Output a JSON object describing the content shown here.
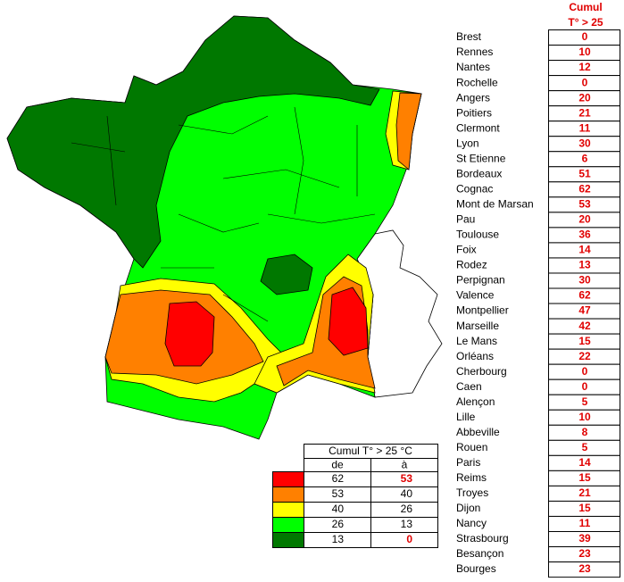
{
  "header": {
    "line1": "Cumul",
    "line2": "T° > 25"
  },
  "cities": [
    {
      "name": "Brest",
      "value": 0
    },
    {
      "name": "Rennes",
      "value": 10
    },
    {
      "name": "Nantes",
      "value": 12
    },
    {
      "name": "Rochelle",
      "value": 0
    },
    {
      "name": "Angers",
      "value": 20
    },
    {
      "name": "Poitiers",
      "value": 21
    },
    {
      "name": "Clermont",
      "value": 11
    },
    {
      "name": "Lyon",
      "value": 30
    },
    {
      "name": "St Etienne",
      "value": 6
    },
    {
      "name": "Bordeaux",
      "value": 51
    },
    {
      "name": "Cognac",
      "value": 62
    },
    {
      "name": "Mont de Marsan",
      "value": 53
    },
    {
      "name": "Pau",
      "value": 20
    },
    {
      "name": "Toulouse",
      "value": 36
    },
    {
      "name": "Foix",
      "value": 14
    },
    {
      "name": "Rodez",
      "value": 13
    },
    {
      "name": "Perpignan",
      "value": 30
    },
    {
      "name": "Valence",
      "value": 62
    },
    {
      "name": "Montpellier",
      "value": 47
    },
    {
      "name": "Marseille",
      "value": 42
    },
    {
      "name": "Le Mans",
      "value": 15
    },
    {
      "name": "Orléans",
      "value": 22
    },
    {
      "name": "Cherbourg",
      "value": 0
    },
    {
      "name": "Caen",
      "value": 0
    },
    {
      "name": "Alençon",
      "value": 5
    },
    {
      "name": "Lille",
      "value": 10
    },
    {
      "name": "Abbeville",
      "value": 8
    },
    {
      "name": "Rouen",
      "value": 5
    },
    {
      "name": "Paris",
      "value": 14
    },
    {
      "name": "Reims",
      "value": 15
    },
    {
      "name": "Troyes",
      "value": 21
    },
    {
      "name": "Dijon",
      "value": 15
    },
    {
      "name": "Nancy",
      "value": 11
    },
    {
      "name": "Strasbourg",
      "value": 39
    },
    {
      "name": "Besançon",
      "value": 23
    },
    {
      "name": "Bourges",
      "value": 23
    }
  ],
  "legend": {
    "title": "Cumul T° > 25 °C",
    "headers": [
      "de",
      "à"
    ],
    "rows": [
      {
        "from": 62,
        "to": 53,
        "color": "#ff0000"
      },
      {
        "from": 53,
        "to": 40,
        "color": "#ff8000"
      },
      {
        "from": 40,
        "to": 26,
        "color": "#ffff00"
      },
      {
        "from": 26,
        "to": 13,
        "color": "#00ff00"
      },
      {
        "from": 13,
        "to": 0,
        "color": "#007800"
      }
    ]
  }
}
